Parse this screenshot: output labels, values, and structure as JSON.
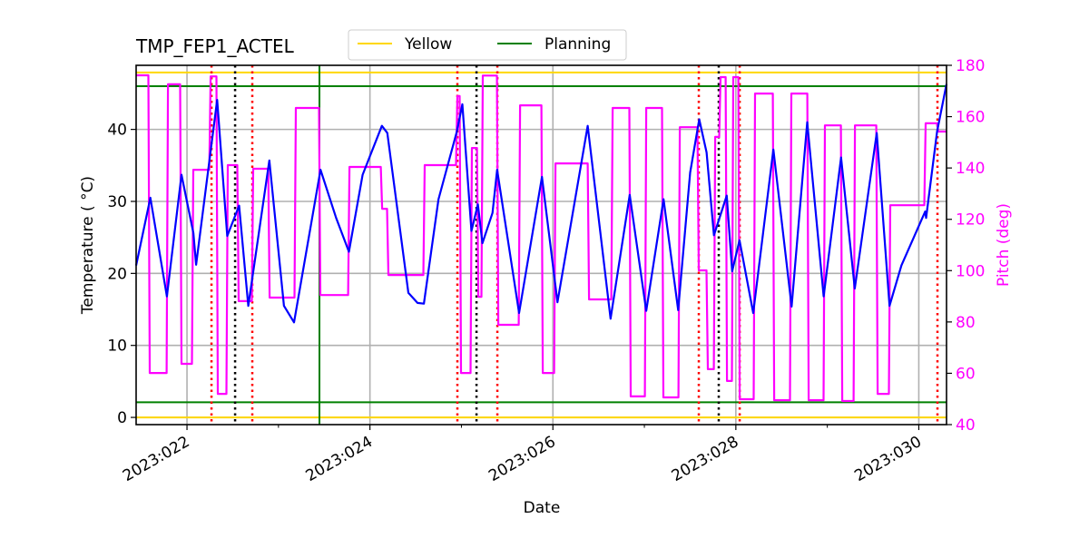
{
  "chart_data": {
    "type": "line",
    "title": "TMP_FEP1_ACTEL",
    "xlabel": "Date",
    "ylabel": "Temperature ($^\\circ$C)",
    "ylabel_display": "Temperature ( °C)",
    "y2label": "Pitch (deg)",
    "xlim": [
      21.444,
      30.303
    ],
    "ylim": [
      -1.0,
      48.9
    ],
    "y2lim": [
      40,
      180
    ],
    "grid": true,
    "legend_placement": "top-center, above plot",
    "x_ticks": [
      {
        "value": 22,
        "label": "2023:022"
      },
      {
        "value": 24,
        "label": "2023:024"
      },
      {
        "value": 26,
        "label": "2023:026"
      },
      {
        "value": 28,
        "label": "2023:028"
      },
      {
        "value": 30,
        "label": "2023:030"
      }
    ],
    "x_minor_ticks": [
      23,
      25,
      27,
      29
    ],
    "y_ticks": [
      0,
      10,
      20,
      30,
      40
    ],
    "y2_ticks": [
      40,
      60,
      80,
      100,
      120,
      140,
      160,
      180
    ],
    "x_unit": "day of year 2023 (2023:DDD)",
    "series": [
      {
        "key": "temperature",
        "axis": "left",
        "color": "#0000ff",
        "points": [
          [
            21.444,
            21.1
          ],
          [
            21.6,
            30.5
          ],
          [
            21.78,
            16.8
          ],
          [
            21.94,
            33.7
          ],
          [
            22.07,
            25.6
          ],
          [
            22.1,
            21.2
          ],
          [
            22.33,
            44.1
          ],
          [
            22.44,
            25.2
          ],
          [
            22.57,
            29.4
          ],
          [
            22.67,
            15.5
          ],
          [
            22.9,
            35.7
          ],
          [
            23.06,
            15.5
          ],
          [
            23.17,
            13.2
          ],
          [
            23.46,
            34.4
          ],
          [
            23.63,
            27.7
          ],
          [
            23.77,
            23.0
          ],
          [
            23.92,
            33.7
          ],
          [
            24.13,
            40.5
          ],
          [
            24.19,
            39.5
          ],
          [
            24.42,
            17.3
          ],
          [
            24.52,
            15.9
          ],
          [
            24.59,
            15.8
          ],
          [
            24.75,
            30.3
          ],
          [
            24.95,
            39.7
          ],
          [
            25.01,
            43.5
          ],
          [
            25.11,
            25.9
          ],
          [
            25.18,
            29.6
          ],
          [
            25.23,
            24.2
          ],
          [
            25.34,
            28.4
          ],
          [
            25.39,
            34.4
          ],
          [
            25.63,
            14.5
          ],
          [
            25.88,
            33.4
          ],
          [
            26.05,
            16.0
          ],
          [
            26.38,
            40.5
          ],
          [
            26.63,
            13.7
          ],
          [
            26.84,
            30.9
          ],
          [
            27.02,
            14.8
          ],
          [
            27.21,
            30.3
          ],
          [
            27.37,
            14.9
          ],
          [
            27.5,
            34.0
          ],
          [
            27.6,
            41.4
          ],
          [
            27.68,
            36.8
          ],
          [
            27.76,
            25.3
          ],
          [
            27.9,
            30.8
          ],
          [
            27.96,
            20.3
          ],
          [
            28.04,
            24.6
          ],
          [
            28.19,
            14.5
          ],
          [
            28.41,
            37.2
          ],
          [
            28.61,
            15.4
          ],
          [
            28.78,
            41.0
          ],
          [
            28.96,
            16.8
          ],
          [
            29.15,
            36.1
          ],
          [
            29.3,
            17.9
          ],
          [
            29.54,
            39.5
          ],
          [
            29.68,
            15.5
          ],
          [
            29.81,
            21.1
          ],
          [
            30.07,
            28.6
          ],
          [
            30.08,
            27.7
          ],
          [
            30.2,
            39.7
          ],
          [
            30.303,
            46.3
          ]
        ]
      },
      {
        "key": "pitch",
        "axis": "right",
        "color": "#ff00ff",
        "step": "post",
        "points": [
          [
            21.444,
            176.1
          ],
          [
            21.593,
            60.1
          ],
          [
            21.792,
            172.6
          ],
          [
            21.94,
            63.7
          ],
          [
            22.069,
            139.3
          ],
          [
            22.258,
            175.7
          ],
          [
            22.337,
            52.0
          ],
          [
            22.446,
            141.1
          ],
          [
            22.565,
            88.1
          ],
          [
            22.724,
            139.7
          ],
          [
            22.903,
            89.5
          ],
          [
            23.19,
            163.4
          ],
          [
            23.458,
            90.5
          ],
          [
            23.776,
            140.4
          ],
          [
            24.133,
            124.1
          ],
          [
            24.202,
            98.3
          ],
          [
            24.599,
            141.1
          ],
          [
            24.956,
            168.0
          ],
          [
            24.996,
            60.1
          ],
          [
            25.115,
            147.8
          ],
          [
            25.185,
            89.8
          ],
          [
            25.234,
            176.0
          ],
          [
            25.403,
            78.9
          ],
          [
            25.641,
            164.4
          ],
          [
            25.889,
            60.1
          ],
          [
            26.028,
            141.8
          ],
          [
            26.395,
            88.8
          ],
          [
            26.653,
            163.4
          ],
          [
            26.851,
            51.0
          ],
          [
            27.02,
            163.4
          ],
          [
            27.208,
            50.6
          ],
          [
            27.387,
            155.9
          ],
          [
            27.595,
            100.1
          ],
          [
            27.694,
            61.6
          ],
          [
            27.774,
            152.1
          ],
          [
            27.833,
            175.4
          ],
          [
            27.903,
            57.0
          ],
          [
            27.972,
            175.4
          ],
          [
            28.042,
            49.9
          ],
          [
            28.21,
            169.0
          ],
          [
            28.419,
            49.5
          ],
          [
            28.607,
            169.0
          ],
          [
            28.796,
            49.5
          ],
          [
            28.974,
            156.6
          ],
          [
            29.163,
            49.2
          ],
          [
            29.302,
            156.6
          ],
          [
            29.55,
            52.0
          ],
          [
            29.688,
            125.5
          ],
          [
            30.075,
            157.4
          ],
          [
            30.214,
            154.2
          ],
          [
            30.303,
            154.2
          ]
        ]
      }
    ],
    "limit_lines": [
      {
        "name": "Yellow",
        "color": "#ffd700",
        "values": [
          47.9,
          0.0
        ]
      },
      {
        "name": "Planning",
        "color": "#008000",
        "values": [
          46.0,
          2.1
        ]
      }
    ],
    "vertical_lines": {
      "green_solid": {
        "color": "#008000",
        "x": [
          23.448
        ]
      },
      "red_dotted": {
        "color": "#ff0000",
        "x": [
          22.268,
          22.714,
          24.956,
          25.393,
          27.595,
          28.042,
          30.204
        ]
      },
      "black_dotted": {
        "color": "#000000",
        "x": [
          22.526,
          25.165,
          27.813
        ]
      }
    },
    "legend": [
      {
        "label": "Yellow",
        "color": "#ffd700"
      },
      {
        "label": "Planning",
        "color": "#008000"
      }
    ]
  }
}
